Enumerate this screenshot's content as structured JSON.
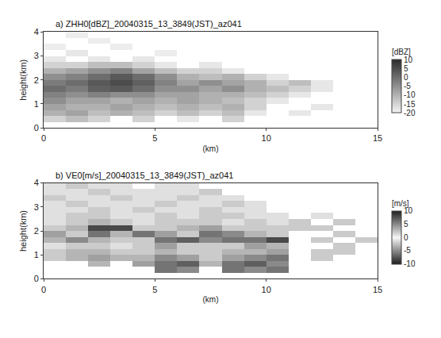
{
  "chart_data": [
    {
      "type": "heatmap",
      "title": "a) ZHH0[dBZ]_20040315_13_3849(JST)_az041",
      "colorbar_title": "[dBZ]",
      "x_label": "(km)",
      "y_label": "height(km)",
      "xlim": [
        0,
        15
      ],
      "xticks": [
        0,
        5,
        10,
        15
      ],
      "ylim": [
        0,
        4
      ],
      "yticks": [
        0,
        1,
        2,
        3,
        4
      ],
      "zlim": [
        -20,
        10
      ],
      "zticks": [
        10,
        5,
        0,
        -5,
        -10,
        -15,
        -20
      ],
      "x": [
        0.5,
        1.5,
        2.5,
        3.5,
        4.5,
        5.5,
        6.5,
        7.5,
        8.5,
        9.5,
        10.5,
        11.5,
        12.5,
        13.5,
        14.5
      ],
      "y": [
        0.125,
        0.375,
        0.625,
        0.875,
        1.125,
        1.375,
        1.625,
        1.875,
        2.125,
        2.375,
        2.625,
        2.875,
        3.125,
        3.375,
        3.625,
        3.875
      ],
      "z": [
        [
          null,
          null,
          null,
          null,
          null,
          null,
          null,
          null,
          null,
          null,
          null,
          null,
          null,
          null,
          null
        ],
        [
          -15,
          -12,
          -15,
          null,
          -15,
          null,
          -18,
          null,
          -15,
          null,
          null,
          null,
          null,
          null,
          null
        ],
        [
          -10,
          -8,
          -12,
          -10,
          -12,
          -15,
          -12,
          -15,
          -12,
          -18,
          null,
          -18,
          null,
          null,
          null
        ],
        [
          -8,
          -10,
          -10,
          -8,
          -10,
          -12,
          -10,
          -12,
          -10,
          -15,
          null,
          null,
          -18,
          null,
          null
        ],
        [
          -5,
          -8,
          -8,
          -10,
          -8,
          -10,
          -8,
          -10,
          -12,
          -15,
          -18,
          null,
          null,
          null,
          null
        ],
        [
          -3,
          -5,
          -3,
          -5,
          -5,
          -8,
          -8,
          -10,
          -10,
          -12,
          -15,
          -18,
          null,
          null,
          null
        ],
        [
          0,
          -2,
          2,
          3,
          0,
          -5,
          -5,
          -8,
          -5,
          -10,
          -12,
          -15,
          -18,
          null,
          null
        ],
        [
          -2,
          0,
          3,
          5,
          2,
          -3,
          -8,
          -5,
          -8,
          -10,
          -15,
          -12,
          -18,
          null,
          null
        ],
        [
          -5,
          -3,
          0,
          3,
          0,
          -5,
          -10,
          -12,
          -10,
          -15,
          -18,
          null,
          null,
          null,
          null
        ],
        [
          -10,
          -8,
          -5,
          -3,
          -8,
          -12,
          -15,
          -15,
          -18,
          null,
          null,
          null,
          null,
          null,
          null
        ],
        [
          -15,
          -15,
          -12,
          -12,
          -15,
          -18,
          null,
          -18,
          null,
          null,
          null,
          null,
          null,
          null,
          null
        ],
        [
          -18,
          null,
          -18,
          null,
          -18,
          null,
          null,
          null,
          null,
          null,
          null,
          null,
          null,
          null,
          null
        ],
        [
          null,
          -18,
          null,
          null,
          null,
          -19,
          null,
          null,
          null,
          null,
          null,
          null,
          null,
          null,
          null
        ],
        [
          -19,
          null,
          null,
          -19,
          null,
          null,
          null,
          null,
          null,
          null,
          null,
          null,
          null,
          null,
          null
        ],
        [
          null,
          null,
          -19,
          null,
          null,
          null,
          null,
          null,
          null,
          null,
          null,
          null,
          null,
          null,
          null
        ],
        [
          null,
          -19,
          null,
          null,
          null,
          null,
          null,
          null,
          null,
          null,
          null,
          null,
          null,
          null,
          null
        ]
      ]
    },
    {
      "type": "heatmap",
      "title": "b) VE0[m/s]_20040315_13_3849(JST)_az041",
      "colorbar_title": "[m/s]",
      "x_label": "(km)",
      "y_label": "height(km)",
      "xlim": [
        0,
        15
      ],
      "xticks": [
        0,
        5,
        10,
        15
      ],
      "ylim": [
        0,
        4
      ],
      "yticks": [
        0,
        1,
        2,
        3,
        4
      ],
      "zlim": [
        -10,
        10
      ],
      "zticks": [
        10,
        5,
        0,
        -5,
        -10
      ],
      "x": [
        0.5,
        1.5,
        2.5,
        3.5,
        4.5,
        5.5,
        6.5,
        7.5,
        8.5,
        9.5,
        10.5,
        11.5,
        12.5,
        13.5,
        14.5
      ],
      "y": [
        0.125,
        0.375,
        0.625,
        0.875,
        1.125,
        1.375,
        1.625,
        1.875,
        2.125,
        2.375,
        2.625,
        2.875,
        3.125,
        3.375,
        3.625,
        3.875
      ],
      "z": [
        [
          null,
          null,
          null,
          null,
          null,
          null,
          null,
          null,
          null,
          null,
          null,
          null,
          null,
          null,
          null
        ],
        [
          null,
          null,
          null,
          null,
          null,
          -6,
          -5,
          null,
          -6,
          -5,
          -6,
          null,
          null,
          null,
          null
        ],
        [
          null,
          null,
          -3,
          null,
          -4,
          -6,
          -7,
          -3,
          -6,
          -7,
          -5,
          null,
          null,
          null,
          null
        ],
        [
          -2,
          -3,
          -4,
          -3,
          -3,
          -5,
          -4,
          -2,
          -4,
          -5,
          -6,
          null,
          -2,
          null,
          null
        ],
        [
          -2,
          -3,
          -3,
          -2,
          -2,
          -3,
          -2,
          -2,
          -3,
          -3,
          -4,
          null,
          -2,
          -2,
          null
        ],
        [
          1,
          -2,
          2,
          -1,
          2,
          4,
          -2,
          2,
          -2,
          4,
          -3,
          null,
          null,
          2,
          null
        ],
        [
          3,
          5,
          3,
          2,
          2,
          6,
          7,
          5,
          6,
          6,
          8,
          null,
          2,
          null,
          2
        ],
        [
          4,
          2,
          6,
          3,
          6,
          4,
          2,
          6,
          5,
          3,
          2,
          null,
          null,
          2,
          null
        ],
        [
          2,
          3,
          8,
          8,
          2,
          2,
          3,
          4,
          2,
          2,
          2,
          2,
          2,
          null,
          null
        ],
        [
          1,
          2,
          3,
          2,
          1,
          2,
          2,
          2,
          1,
          2,
          1,
          2,
          null,
          2,
          null
        ],
        [
          1,
          2,
          2,
          1,
          1,
          2,
          1,
          2,
          2,
          1,
          1,
          null,
          1,
          null,
          null
        ],
        [
          1,
          1,
          2,
          1,
          2,
          1,
          1,
          2,
          1,
          1,
          null,
          null,
          null,
          null,
          null
        ],
        [
          1,
          2,
          1,
          1,
          1,
          2,
          1,
          1,
          2,
          1,
          null,
          null,
          null,
          null,
          null
        ],
        [
          2,
          1,
          1,
          2,
          1,
          1,
          2,
          1,
          1,
          null,
          null,
          null,
          null,
          null,
          null
        ],
        [
          1,
          1,
          2,
          1,
          1,
          1,
          1,
          2,
          null,
          null,
          null,
          null,
          null,
          null,
          null
        ],
        [
          1,
          2,
          1,
          1,
          null,
          1,
          1,
          null,
          null,
          null,
          null,
          null,
          null,
          null,
          null
        ]
      ]
    }
  ]
}
